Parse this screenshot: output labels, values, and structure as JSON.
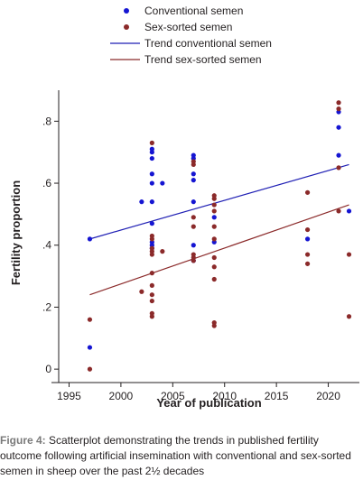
{
  "chart_data": {
    "type": "scatter",
    "xlabel": "Year of publication",
    "ylabel": "Fertility proportion",
    "xlim": [
      1994,
      2023
    ],
    "ylim": [
      -0.02,
      0.9
    ],
    "xticks": [
      1995,
      2000,
      2005,
      2010,
      2015,
      2020
    ],
    "xtick_labels": [
      "1995",
      "2000",
      "2005",
      "2010",
      "2015",
      "2020"
    ],
    "yticks": [
      0,
      0.2,
      0.4,
      0.6,
      0.8
    ],
    "ytick_labels": [
      "0",
      ".2",
      ".4",
      ".6",
      ".8"
    ],
    "grid": false,
    "legend_position": "top",
    "series": [
      {
        "name": "Conventional semen",
        "kind": "scatter",
        "color": "#1515d2",
        "points": [
          [
            1997,
            0.42
          ],
          [
            1997,
            0.07
          ],
          [
            2002,
            0.54
          ],
          [
            2003,
            0.71
          ],
          [
            2003,
            0.7
          ],
          [
            2003,
            0.68
          ],
          [
            2003,
            0.63
          ],
          [
            2003,
            0.6
          ],
          [
            2003,
            0.54
          ],
          [
            2003,
            0.47
          ],
          [
            2003,
            0.41
          ],
          [
            2003,
            0.4
          ],
          [
            2003,
            0.39
          ],
          [
            2004,
            0.6
          ],
          [
            2007,
            0.69
          ],
          [
            2007,
            0.68
          ],
          [
            2007,
            0.63
          ],
          [
            2007,
            0.61
          ],
          [
            2007,
            0.54
          ],
          [
            2007,
            0.4
          ],
          [
            2007,
            0.35
          ],
          [
            2009,
            0.49
          ],
          [
            2009,
            0.41
          ],
          [
            2018,
            0.42
          ],
          [
            2021,
            0.83
          ],
          [
            2021,
            0.78
          ],
          [
            2021,
            0.69
          ],
          [
            2022,
            0.51
          ]
        ]
      },
      {
        "name": "Sex-sorted semen",
        "kind": "scatter",
        "color": "#8b2a2a",
        "points": [
          [
            1997,
            0.16
          ],
          [
            1997,
            0.0
          ],
          [
            2002,
            0.25
          ],
          [
            2003,
            0.73
          ],
          [
            2003,
            0.43
          ],
          [
            2003,
            0.42
          ],
          [
            2003,
            0.39
          ],
          [
            2003,
            0.38
          ],
          [
            2003,
            0.37
          ],
          [
            2003,
            0.31
          ],
          [
            2003,
            0.27
          ],
          [
            2003,
            0.24
          ],
          [
            2003,
            0.22
          ],
          [
            2003,
            0.18
          ],
          [
            2003,
            0.17
          ],
          [
            2004,
            0.38
          ],
          [
            2007,
            0.67
          ],
          [
            2007,
            0.66
          ],
          [
            2007,
            0.49
          ],
          [
            2007,
            0.46
          ],
          [
            2007,
            0.37
          ],
          [
            2007,
            0.36
          ],
          [
            2007,
            0.35
          ],
          [
            2009,
            0.56
          ],
          [
            2009,
            0.55
          ],
          [
            2009,
            0.53
          ],
          [
            2009,
            0.51
          ],
          [
            2009,
            0.46
          ],
          [
            2009,
            0.42
          ],
          [
            2009,
            0.36
          ],
          [
            2009,
            0.33
          ],
          [
            2009,
            0.29
          ],
          [
            2009,
            0.15
          ],
          [
            2009,
            0.14
          ],
          [
            2018,
            0.57
          ],
          [
            2018,
            0.45
          ],
          [
            2018,
            0.37
          ],
          [
            2018,
            0.34
          ],
          [
            2021,
            0.86
          ],
          [
            2021,
            0.84
          ],
          [
            2021,
            0.65
          ],
          [
            2021,
            0.51
          ],
          [
            2022,
            0.37
          ],
          [
            2022,
            0.17
          ]
        ]
      },
      {
        "name": "Trend conventional semen",
        "kind": "line",
        "color": "#1f1fb4",
        "points": [
          [
            1997,
            0.42
          ],
          [
            2022,
            0.66
          ]
        ]
      },
      {
        "name": "Trend sex-sorted semen",
        "kind": "line",
        "color": "#8b2a2a",
        "points": [
          [
            1997,
            0.24
          ],
          [
            2022,
            0.53
          ]
        ]
      }
    ]
  },
  "caption": {
    "label": "Figure 4:",
    "text": " Scatterplot demonstrating the trends in published fertility outcome following artificial insemination with conventional and sex-sorted semen in sheep over the past 2½ decades"
  }
}
